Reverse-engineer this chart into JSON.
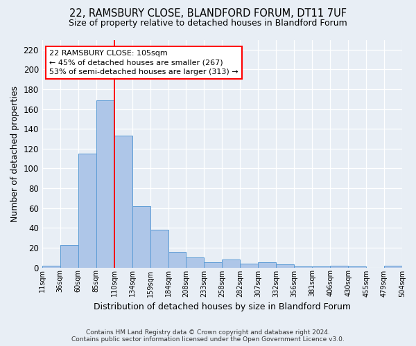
{
  "title1": "22, RAMSBURY CLOSE, BLANDFORD FORUM, DT11 7UF",
  "title2": "Size of property relative to detached houses in Blandford Forum",
  "xlabel": "Distribution of detached houses by size in Blandford Forum",
  "ylabel": "Number of detached properties",
  "footnote1": "Contains HM Land Registry data © Crown copyright and database right 2024.",
  "footnote2": "Contains public sector information licensed under the Open Government Licence v3.0.",
  "bar_values": [
    2,
    23,
    115,
    169,
    133,
    62,
    38,
    16,
    10,
    5,
    8,
    4,
    5,
    3,
    1,
    1,
    2,
    1,
    0,
    2
  ],
  "bin_labels": [
    "11sqm",
    "36sqm",
    "60sqm",
    "85sqm",
    "110sqm",
    "134sqm",
    "159sqm",
    "184sqm",
    "208sqm",
    "233sqm",
    "258sqm",
    "282sqm",
    "307sqm",
    "332sqm",
    "356sqm",
    "381sqm",
    "406sqm",
    "430sqm",
    "455sqm",
    "479sqm",
    "504sqm"
  ],
  "bar_color": "#aec6e8",
  "bar_edge_color": "#5b9bd5",
  "red_line_bin": 4,
  "annotation_title": "22 RAMSBURY CLOSE: 105sqm",
  "annotation_line1": "← 45% of detached houses are smaller (267)",
  "annotation_line2": "53% of semi-detached houses are larger (313) →",
  "ylim": [
    0,
    230
  ],
  "yticks": [
    0,
    20,
    40,
    60,
    80,
    100,
    120,
    140,
    160,
    180,
    200,
    220
  ],
  "background_color": "#e8eef5",
  "plot_bg_color": "#e8eef5",
  "grid_color": "#ffffff"
}
